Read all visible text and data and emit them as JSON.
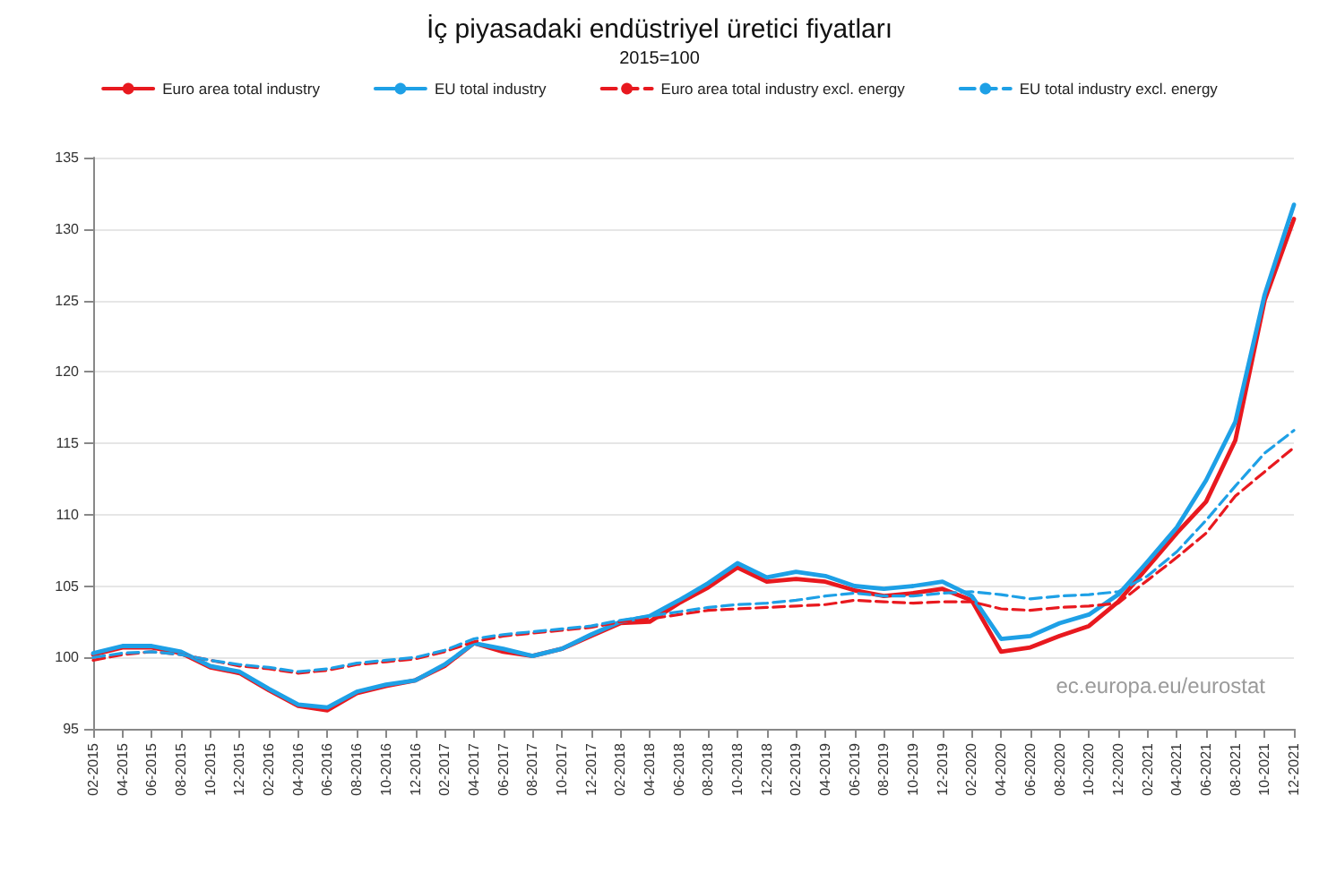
{
  "chart_data": {
    "type": "line",
    "title": "İç piyasadaki endüstriyel üretici fiyatları",
    "subtitle": "2015=100",
    "categories": [
      "02-2015",
      "04-2015",
      "06-2015",
      "08-2015",
      "10-2015",
      "12-2015",
      "02-2016",
      "04-2016",
      "06-2016",
      "08-2016",
      "10-2016",
      "12-2016",
      "02-2017",
      "04-2017",
      "06-2017",
      "08-2017",
      "10-2017",
      "12-2017",
      "02-2018",
      "04-2018",
      "06-2018",
      "08-2018",
      "10-2018",
      "12-2018",
      "02-2019",
      "04-2019",
      "06-2019",
      "08-2019",
      "10-2019",
      "12-2019",
      "02-2020",
      "04-2020",
      "06-2020",
      "08-2020",
      "10-2020",
      "12-2020",
      "02-2021",
      "04-2021",
      "06-2021",
      "08-2021",
      "10-2021",
      "12-2021"
    ],
    "series": [
      {
        "name": "Euro area total industry",
        "color": "#e8191f",
        "line_style": "solid",
        "values": [
          100.2,
          100.7,
          100.7,
          100.3,
          99.3,
          98.9,
          97.7,
          96.6,
          96.3,
          97.5,
          98.0,
          98.4,
          99.4,
          101.0,
          100.4,
          100.1,
          100.6,
          101.5,
          102.4,
          102.5,
          103.8,
          104.9,
          106.3,
          105.3,
          105.5,
          105.3,
          104.7,
          104.3,
          104.5,
          104.8,
          104.0,
          100.4,
          100.7,
          101.5,
          102.2,
          103.9,
          106.3,
          108.7,
          110.9,
          115.2,
          125.0,
          130.7
        ]
      },
      {
        "name": "EU total industry",
        "color": "#1ea0e6",
        "line_style": "solid",
        "values": [
          100.3,
          100.8,
          100.8,
          100.4,
          99.4,
          99.0,
          97.8,
          96.7,
          96.5,
          97.6,
          98.1,
          98.4,
          99.5,
          101.0,
          100.6,
          100.1,
          100.6,
          101.6,
          102.5,
          102.9,
          104.0,
          105.2,
          106.6,
          105.6,
          106.0,
          105.7,
          105.0,
          104.8,
          105.0,
          105.3,
          104.3,
          101.3,
          101.5,
          102.4,
          103.0,
          104.4,
          106.7,
          109.1,
          112.4,
          116.5,
          125.4,
          131.7
        ]
      },
      {
        "name": "Euro area total industry excl. energy",
        "color": "#e8191f",
        "line_style": "dashed",
        "values": [
          99.8,
          100.2,
          100.4,
          100.2,
          99.8,
          99.4,
          99.2,
          98.9,
          99.1,
          99.5,
          99.7,
          99.9,
          100.4,
          101.1,
          101.5,
          101.7,
          101.9,
          102.1,
          102.5,
          102.7,
          103.0,
          103.3,
          103.4,
          103.5,
          103.6,
          103.7,
          104.0,
          103.9,
          103.8,
          103.9,
          103.9,
          103.4,
          103.3,
          103.5,
          103.6,
          103.8,
          105.4,
          107.0,
          108.7,
          111.3,
          113.0,
          114.7
        ]
      },
      {
        "name": "EU total industry excl. energy",
        "color": "#1ea0e6",
        "line_style": "dashed",
        "values": [
          100.0,
          100.3,
          100.4,
          100.2,
          99.8,
          99.5,
          99.3,
          99.0,
          99.2,
          99.6,
          99.8,
          100.0,
          100.5,
          101.3,
          101.6,
          101.8,
          102.0,
          102.2,
          102.6,
          102.9,
          103.2,
          103.5,
          103.7,
          103.8,
          104.0,
          104.3,
          104.5,
          104.3,
          104.3,
          104.5,
          104.6,
          104.4,
          104.1,
          104.3,
          104.4,
          104.6,
          105.7,
          107.4,
          109.6,
          112.0,
          114.3,
          115.9
        ]
      }
    ],
    "ylim": [
      95,
      135
    ],
    "yticks": [
      95,
      100,
      105,
      110,
      115,
      120,
      125,
      130,
      135
    ],
    "grid": "y",
    "legend": "top",
    "marker": "none",
    "annotations": [
      "ec.europa.eu/eurostat"
    ]
  }
}
